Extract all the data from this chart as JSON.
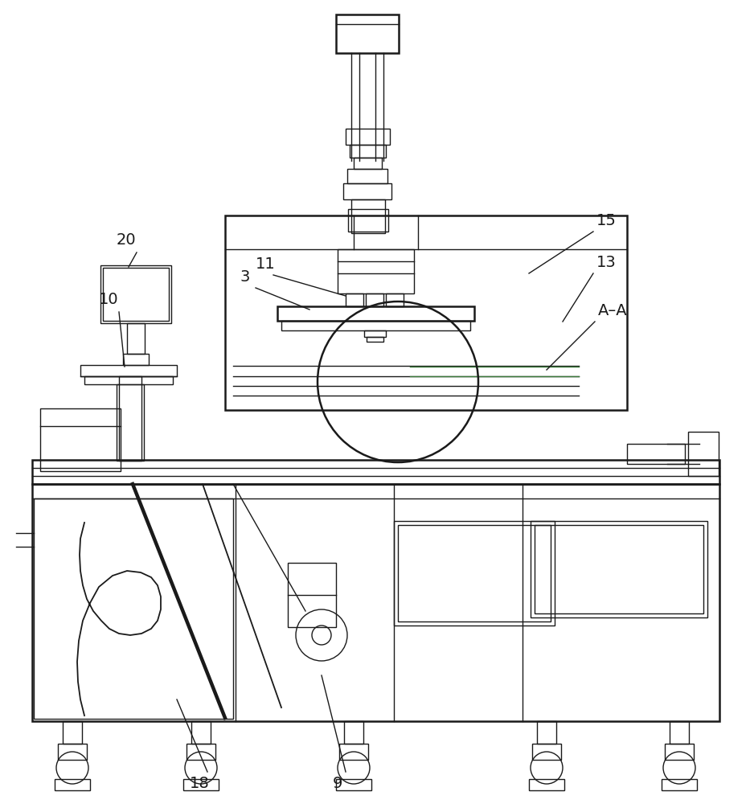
{
  "bg_color": "#ffffff",
  "line_color": "#1a1a1a",
  "lw": 1.0,
  "tlw": 1.8,
  "green_color": "#3a7a3a",
  "gray_fill": "#e8e8e8"
}
